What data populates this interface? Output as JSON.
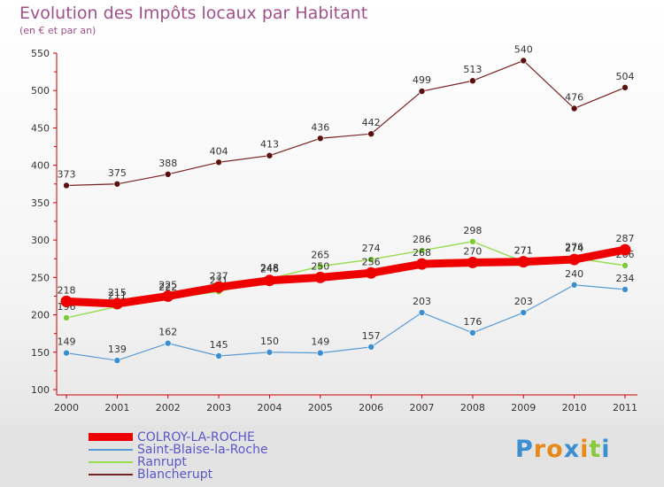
{
  "title": "Evolution des Impôts locaux par Habitant",
  "subtitle": "(en € et par an)",
  "chart_data": {
    "type": "line",
    "title": "Evolution des Impôts locaux par Habitant",
    "subtitle": "(en € et par an)",
    "x": [
      "2000",
      "2001",
      "2002",
      "2003",
      "2004",
      "2005",
      "2006",
      "2007",
      "2008",
      "2009",
      "2010",
      "2011"
    ],
    "ylim": [
      100,
      550
    ],
    "yticks": [
      100,
      150,
      200,
      250,
      300,
      350,
      400,
      450,
      500,
      550
    ],
    "grid": false,
    "legend_position": "bottom-left",
    "series": [
      {
        "name": "COLROY-LA-ROCHE",
        "color": "#ee0000",
        "values": [
          218,
          215,
          225,
          237,
          246,
          250,
          256,
          268,
          270,
          271,
          274,
          287
        ]
      },
      {
        "name": "Saint-Blaise-la-Roche",
        "color": "#5b9bd5",
        "values": [
          149,
          139,
          162,
          145,
          150,
          149,
          157,
          203,
          176,
          203,
          240,
          234
        ]
      },
      {
        "name": "Ranrupt",
        "color": "#99dd55",
        "values": [
          196,
          211,
          222,
          231,
          248,
          265,
          274,
          286,
          298,
          271,
          276,
          266
        ]
      },
      {
        "name": "Blancherupt",
        "color": "#7a2020",
        "values": [
          373,
          375,
          388,
          404,
          413,
          436,
          442,
          499,
          513,
          540,
          476,
          504
        ]
      }
    ]
  },
  "logo": {
    "letters": [
      "P",
      "r",
      "o",
      "x",
      "i",
      "t",
      "i"
    ],
    "colors": [
      "#3b8fd0",
      "#e88a1a",
      "#e88a1a",
      "#3b8fd0",
      "#e88a1a",
      "#8ac83f",
      "#3b8fd0"
    ]
  }
}
